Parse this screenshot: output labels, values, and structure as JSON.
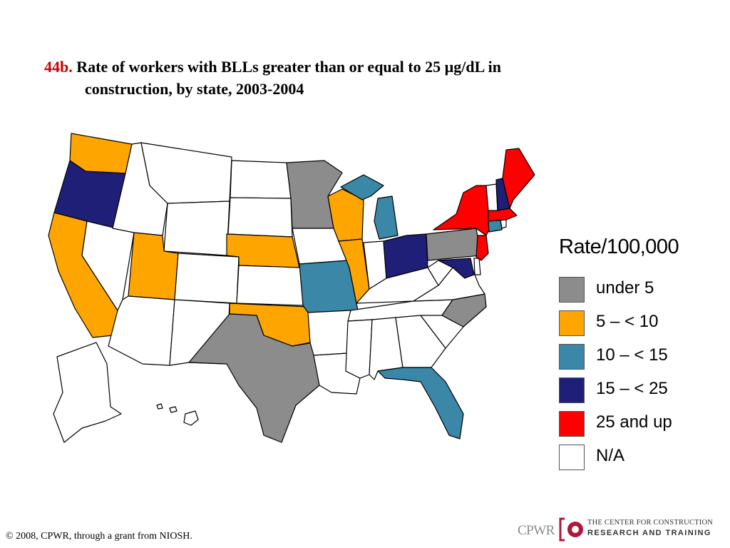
{
  "title": {
    "number": "44b.",
    "line1": "Rate of workers with BLLs  greater than or equal to 25 µg/dL in",
    "line2": "construction, by state, 2003-2004"
  },
  "legend": {
    "title": "Rate/100,000",
    "items": [
      {
        "label": "under 5",
        "color": "#8c8c8c"
      },
      {
        "label": "5 – < 10",
        "color": "#ffa500"
      },
      {
        "label": "10 – < 15",
        "color": "#3a87a8"
      },
      {
        "label": "15 – < 25",
        "color": "#1f1f78"
      },
      {
        "label": "25 and up",
        "color": "#ff0000"
      },
      {
        "label": "N/A",
        "color": "#ffffff"
      }
    ]
  },
  "states": {
    "WA": 1,
    "OR": 3,
    "CA": 1,
    "ID": 5,
    "NV": 5,
    "MT": 5,
    "WY": 5,
    "UT": 1,
    "AZ": 5,
    "CO": 5,
    "NM": 5,
    "ND": 5,
    "SD": 5,
    "NE": 1,
    "KS": 5,
    "OK": 1,
    "TX": 0,
    "MN": 0,
    "IA": 5,
    "MO": 2,
    "AR": 5,
    "LA": 5,
    "WI": 1,
    "IL": 1,
    "MI": 2,
    "IN": 5,
    "OH": 3,
    "KY": 5,
    "TN": 5,
    "MS": 5,
    "AL": 5,
    "GA": 5,
    "FL": 2,
    "SC": 5,
    "NC": 0,
    "VA": 5,
    "WV": 5,
    "MD": 3,
    "DE": 5,
    "PA": 0,
    "NJ": 4,
    "NY": 4,
    "CT": 2,
    "RI": 5,
    "MA": 4,
    "VT": 5,
    "NH": 3,
    "ME": 4,
    "AK": 5,
    "HI": 5
  },
  "footer": "© 2008, CPWR, through a grant from NIOSH.",
  "logo": {
    "abbr": "CPWR",
    "line1": "THE CENTER FOR CONSTRUCTION",
    "line2": "RESEARCH AND TRAINING"
  }
}
